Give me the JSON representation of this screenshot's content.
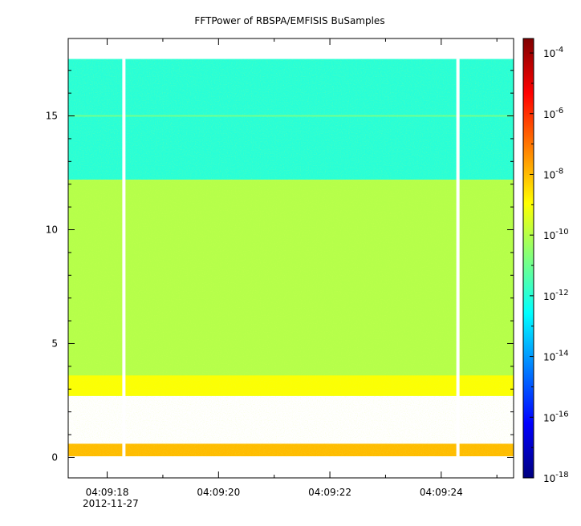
{
  "chart_data": {
    "type": "heatmap",
    "title": "FFTPower of RBSPA/EMFISIS  BuSamples",
    "x_axis": {
      "type": "time",
      "range": [
        "04:09:17.3",
        "04:09:25.3"
      ],
      "tick_labels": [
        "04:09:18",
        "04:09:20",
        "04:09:22",
        "04:09:24"
      ],
      "tick_values_s": [
        18,
        20,
        22,
        24
      ],
      "date_label": "2012-11-27"
    },
    "y_axis": {
      "range": [
        -0.9,
        18.4
      ],
      "tick_labels": [
        "0",
        "5",
        "10",
        "15"
      ],
      "tick_values": [
        0,
        5,
        10,
        15
      ]
    },
    "colorbar": {
      "scale": "log",
      "range": [
        1e-18,
        0.0003
      ],
      "tick_bases": [
        "10",
        "10",
        "10",
        "10",
        "10",
        "10",
        "10",
        "10"
      ],
      "tick_exponents": [
        "-4",
        "-6",
        "-8",
        "-10",
        "-12",
        "-14",
        "-16",
        "-18"
      ],
      "colormap": [
        "#00007f",
        "#0000ff",
        "#007fff",
        "#00ffff",
        "#7fff7f",
        "#ffff00",
        "#ff7f00",
        "#ff0000",
        "#7f0000"
      ]
    },
    "data_extent": {
      "x_range_s": [
        17.3,
        25.3
      ],
      "y_range": [
        0.05,
        17.5
      ]
    },
    "data_gaps_s": [
      18.3,
      24.3
    ],
    "features": [
      {
        "y_range": [
          12.2,
          17.5
        ],
        "level": 1e-12
      },
      {
        "y_range": [
          2.7,
          12.2
        ],
        "level": 1e-10
      },
      {
        "y_range": [
          2.7,
          3.6
        ],
        "level": 1e-09
      },
      {
        "y_range": [
          0.05,
          0.6
        ],
        "level": 1e-08
      },
      {
        "y_value": 15.0,
        "level": 1e-11
      }
    ]
  }
}
